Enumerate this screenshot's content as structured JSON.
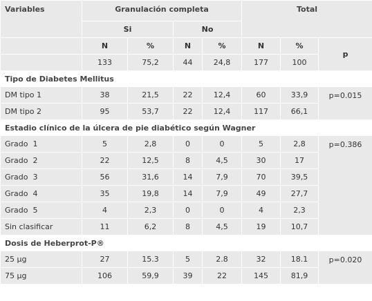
{
  "header": {
    "variables": "Variables",
    "granulacion": "Granulación completa",
    "total": "Total",
    "si": "Si",
    "no": "No",
    "n": "N",
    "pct": "%",
    "p": "p"
  },
  "totals": {
    "si_n": "133",
    "si_pct": "75,2",
    "no_n": "44",
    "no_pct": "24,8",
    "tot_n": "177",
    "tot_pct": "100"
  },
  "section1": {
    "title": "Tipo de Diabetes Mellitus",
    "p": "p=0.015",
    "rows": [
      {
        "label": "DM tipo 1",
        "si_n": "38",
        "si_pct": "21,5",
        "no_n": "22",
        "no_pct": "12,4",
        "tot_n": "60",
        "tot_pct": "33,9"
      },
      {
        "label": "DM tipo 2",
        "si_n": "95",
        "si_pct": "53,7",
        "no_n": "22",
        "no_pct": "12,4",
        "tot_n": "117",
        "tot_pct": "66,1"
      }
    ]
  },
  "section2": {
    "title": "Estadio clínico de la úlcera de pie diabético según Wagner",
    "p": "p=0.386",
    "rows": [
      {
        "label": "Grado  1",
        "si_n": "5",
        "si_pct": "2,8",
        "no_n": "0",
        "no_pct": "0",
        "tot_n": "5",
        "tot_pct": "2,8"
      },
      {
        "label": "Grado  2",
        "si_n": "22",
        "si_pct": "12,5",
        "no_n": "8",
        "no_pct": "4,5",
        "tot_n": "30",
        "tot_pct": "17"
      },
      {
        "label": "Grado  3",
        "si_n": "56",
        "si_pct": "31,6",
        "no_n": "14",
        "no_pct": "7,9",
        "tot_n": "70",
        "tot_pct": "39,5"
      },
      {
        "label": "Grado  4",
        "si_n": "35",
        "si_pct": "19,8",
        "no_n": "14",
        "no_pct": "7,9",
        "tot_n": "49",
        "tot_pct": "27,7"
      },
      {
        "label": "Grado  5",
        "si_n": "4",
        "si_pct": "2,3",
        "no_n": "0",
        "no_pct": "0",
        "tot_n": "4",
        "tot_pct": "2,3"
      },
      {
        "label": "Sin clasificar",
        "si_n": "11",
        "si_pct": "6,2",
        "no_n": "8",
        "no_pct": "4,5",
        "tot_n": "19",
        "tot_pct": "10,7"
      }
    ]
  },
  "section3": {
    "title": "Dosis de Heberprot-P®",
    "p": "p=0.020",
    "rows": [
      {
        "label": "25 μg",
        "si_n": "27",
        "si_pct": "15.3",
        "no_n": "5",
        "no_pct": "2.8",
        "tot_n": "32",
        "tot_pct": "18.1"
      },
      {
        "label": "75 μg",
        "si_n": "106",
        "si_pct": "59,9",
        "no_n": "39",
        "no_pct": "22",
        "tot_n": "145",
        "tot_pct": "81,9"
      }
    ]
  }
}
